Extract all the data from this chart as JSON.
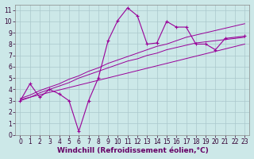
{
  "title": "",
  "xlabel": "Windchill (Refroidissement éolien,°C)",
  "bg_color": "#cce8e8",
  "grid_color": "#aac8cc",
  "line_color": "#990099",
  "xlim": [
    -0.5,
    23.5
  ],
  "ylim": [
    0,
    11.5
  ],
  "xticks": [
    0,
    1,
    2,
    3,
    4,
    5,
    6,
    7,
    8,
    9,
    10,
    11,
    12,
    13,
    14,
    15,
    16,
    17,
    18,
    19,
    20,
    21,
    22,
    23
  ],
  "yticks": [
    0,
    1,
    2,
    3,
    4,
    5,
    6,
    7,
    8,
    9,
    10,
    11
  ],
  "curve_x": [
    0,
    1,
    2,
    3,
    4,
    5,
    6,
    7,
    8,
    9,
    10,
    11,
    12,
    13,
    14,
    15,
    16,
    17,
    18,
    19,
    20,
    21,
    23
  ],
  "curve_y": [
    3.0,
    4.5,
    3.3,
    4.0,
    3.6,
    3.0,
    0.3,
    3.0,
    5.0,
    8.3,
    10.1,
    11.2,
    10.5,
    8.0,
    8.1,
    10.0,
    9.5,
    9.5,
    8.0,
    8.0,
    7.5,
    8.5,
    8.7
  ],
  "smooth1_x": [
    0,
    1,
    2,
    3,
    4,
    5,
    6,
    7,
    8,
    9,
    10,
    11,
    12,
    13,
    14,
    15,
    16,
    17,
    18,
    19,
    20,
    21,
    22,
    23
  ],
  "smooth1_y": [
    3.0,
    3.3,
    3.7,
    4.0,
    4.3,
    4.6,
    5.0,
    5.3,
    5.6,
    5.9,
    6.2,
    6.5,
    6.7,
    7.0,
    7.2,
    7.5,
    7.7,
    7.9,
    8.1,
    8.2,
    8.3,
    8.4,
    8.5,
    8.6
  ],
  "smooth2_x": [
    0,
    1,
    2,
    3,
    4,
    5,
    6,
    7,
    8,
    9,
    10,
    11,
    12,
    13,
    14,
    15,
    16,
    17,
    18,
    19,
    20,
    21,
    22,
    23
  ],
  "smooth2_y": [
    3.2,
    3.5,
    3.9,
    4.2,
    4.5,
    4.9,
    5.2,
    5.6,
    5.9,
    6.3,
    6.6,
    6.9,
    7.2,
    7.5,
    7.8,
    8.0,
    8.3,
    8.6,
    8.8,
    9.0,
    9.2,
    9.4,
    9.6,
    9.8
  ],
  "line_x": [
    0,
    23
  ],
  "line_y": [
    3.1,
    8.0
  ],
  "figsize": [
    3.2,
    2.0
  ],
  "dpi": 100,
  "tick_fontsize": 5.5,
  "label_fontsize": 6.5
}
